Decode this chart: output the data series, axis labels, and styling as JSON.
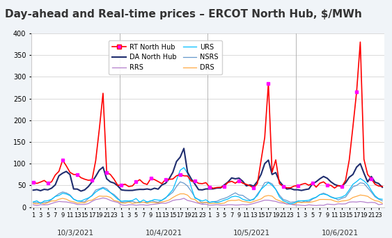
{
  "title": "Day-ahead and Real-time prices – ERCOT North Hub, $/MWh",
  "title_fontsize": 11,
  "title_bg_color": "#d9d9d9",
  "background_color": "#f0f4f8",
  "plot_bg_color": "#ffffff",
  "ylim": [
    0,
    400
  ],
  "yticks": [
    0,
    50,
    100,
    150,
    200,
    250,
    300,
    350,
    400
  ],
  "days": [
    "10/3/2021",
    "10/4/2021",
    "10/5/2021",
    "10/6/2021"
  ],
  "hours_per_day": 24,
  "series": {
    "RT_North_Hub": {
      "color": "#ff0000",
      "marker": "s",
      "marker_color": "#ff00ff",
      "linewidth": 1.2,
      "markersize": 3,
      "label": "RT North Hub",
      "zorder": 5
    },
    "DA_North_Hub": {
      "color": "#1f2d6e",
      "marker": null,
      "linewidth": 1.5,
      "label": "DA North Hub",
      "zorder": 4
    },
    "RRS": {
      "color": "#b47fcc",
      "marker": null,
      "linewidth": 0.9,
      "label": "RRS",
      "zorder": 3
    },
    "URS": {
      "color": "#00bfff",
      "marker": null,
      "linewidth": 0.9,
      "label": "URS",
      "zorder": 3
    },
    "NSRS": {
      "color": "#6699cc",
      "marker": null,
      "linewidth": 0.9,
      "label": "NSRS",
      "zorder": 3
    },
    "DRS": {
      "color": "#ffaa44",
      "marker": null,
      "linewidth": 0.9,
      "label": "DRS",
      "zorder": 3
    }
  },
  "xtick_labels": [
    "1",
    "3",
    "5",
    "7",
    "9",
    "11",
    "13",
    "15",
    "17",
    "19",
    "21",
    "23"
  ],
  "grid_color": "#cccccc",
  "grid_linewidth": 0.5
}
